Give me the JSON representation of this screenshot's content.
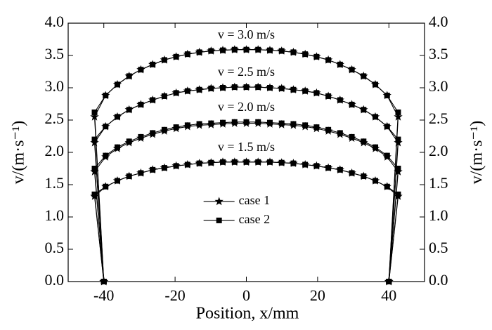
{
  "chart_data": {
    "type": "line",
    "xlabel": "Position, x/mm",
    "ylabel": "v/(m·s⁻¹)",
    "x": [
      -40,
      -42.6,
      -39.5,
      -36.2,
      -32.9,
      -29.6,
      -26.3,
      -23,
      -19.7,
      -16.5,
      -13.2,
      -9.9,
      -6.6,
      -3.3,
      0,
      3.3,
      6.6,
      9.9,
      13.2,
      16.5,
      19.7,
      23,
      26.3,
      29.6,
      32.9,
      36.2,
      39.5,
      42.6,
      40
    ],
    "series": [
      {
        "name": "case 1",
        "marker": "star",
        "color": "#000000",
        "profiles": [
          [
            0,
            2.55,
            2.88,
            3.05,
            3.18,
            3.28,
            3.36,
            3.43,
            3.48,
            3.52,
            3.55,
            3.57,
            3.58,
            3.59,
            3.59,
            3.59,
            3.58,
            3.57,
            3.55,
            3.52,
            3.48,
            3.43,
            3.36,
            3.28,
            3.18,
            3.05,
            2.88,
            2.55,
            0
          ],
          [
            0,
            2.15,
            2.4,
            2.55,
            2.66,
            2.74,
            2.81,
            2.87,
            2.92,
            2.95,
            2.97,
            2.99,
            3.0,
            3.01,
            3.01,
            3.01,
            3.0,
            2.99,
            2.97,
            2.95,
            2.92,
            2.87,
            2.81,
            2.74,
            2.66,
            2.55,
            2.4,
            2.15,
            0
          ],
          [
            0,
            1.7,
            1.93,
            2.06,
            2.15,
            2.22,
            2.28,
            2.33,
            2.37,
            2.4,
            2.42,
            2.43,
            2.44,
            2.45,
            2.45,
            2.45,
            2.44,
            2.43,
            2.42,
            2.4,
            2.37,
            2.33,
            2.28,
            2.22,
            2.15,
            2.06,
            1.93,
            1.7,
            0
          ],
          [
            0,
            1.32,
            1.47,
            1.56,
            1.63,
            1.68,
            1.73,
            1.76,
            1.79,
            1.81,
            1.83,
            1.84,
            1.85,
            1.85,
            1.85,
            1.85,
            1.85,
            1.84,
            1.83,
            1.81,
            1.79,
            1.76,
            1.73,
            1.68,
            1.63,
            1.56,
            1.47,
            1.32,
            0
          ]
        ]
      },
      {
        "name": "case 2",
        "marker": "square",
        "color": "#000000",
        "profiles": [
          [
            0,
            2.62,
            2.88,
            3.05,
            3.18,
            3.28,
            3.36,
            3.43,
            3.48,
            3.52,
            3.55,
            3.57,
            3.58,
            3.59,
            3.59,
            3.59,
            3.58,
            3.57,
            3.55,
            3.52,
            3.48,
            3.43,
            3.36,
            3.28,
            3.18,
            3.05,
            2.88,
            2.62,
            0
          ],
          [
            0,
            2.2,
            2.4,
            2.55,
            2.66,
            2.74,
            2.81,
            2.87,
            2.92,
            2.95,
            2.97,
            2.99,
            3.0,
            3.01,
            3.01,
            3.01,
            3.0,
            2.99,
            2.97,
            2.95,
            2.92,
            2.87,
            2.81,
            2.74,
            2.66,
            2.55,
            2.4,
            2.2,
            0
          ],
          [
            0,
            1.75,
            1.95,
            2.08,
            2.17,
            2.24,
            2.3,
            2.35,
            2.39,
            2.42,
            2.44,
            2.45,
            2.46,
            2.47,
            2.47,
            2.47,
            2.46,
            2.45,
            2.44,
            2.42,
            2.39,
            2.35,
            2.3,
            2.24,
            2.17,
            2.08,
            1.95,
            1.75,
            0
          ],
          [
            0,
            1.35,
            1.47,
            1.56,
            1.63,
            1.68,
            1.73,
            1.76,
            1.79,
            1.81,
            1.83,
            1.84,
            1.85,
            1.85,
            1.85,
            1.85,
            1.85,
            1.84,
            1.83,
            1.81,
            1.79,
            1.76,
            1.73,
            1.68,
            1.63,
            1.56,
            1.47,
            1.35,
            0
          ]
        ]
      }
    ],
    "annotations": [
      "v = 3.0 m/s",
      "v = 2.5 m/s",
      "v = 2.0 m/s",
      "v = 1.5 m/s"
    ],
    "xlim": [
      -50,
      50
    ],
    "xticks": [
      -40,
      -20,
      0,
      20,
      40
    ],
    "ylim": [
      0,
      4
    ],
    "yticks": [
      {
        "value": 0,
        "label": "0.0"
      },
      0.5,
      {
        "value": 1,
        "label": "1.0"
      },
      1.5,
      {
        "value": 2,
        "label": "2.0"
      },
      2.5,
      {
        "value": 3,
        "label": "3.0"
      },
      3.5,
      {
        "value": 4,
        "label": "4.0"
      }
    ],
    "y2lim": [
      0,
      4
    ],
    "grid": false,
    "legend": "center"
  }
}
